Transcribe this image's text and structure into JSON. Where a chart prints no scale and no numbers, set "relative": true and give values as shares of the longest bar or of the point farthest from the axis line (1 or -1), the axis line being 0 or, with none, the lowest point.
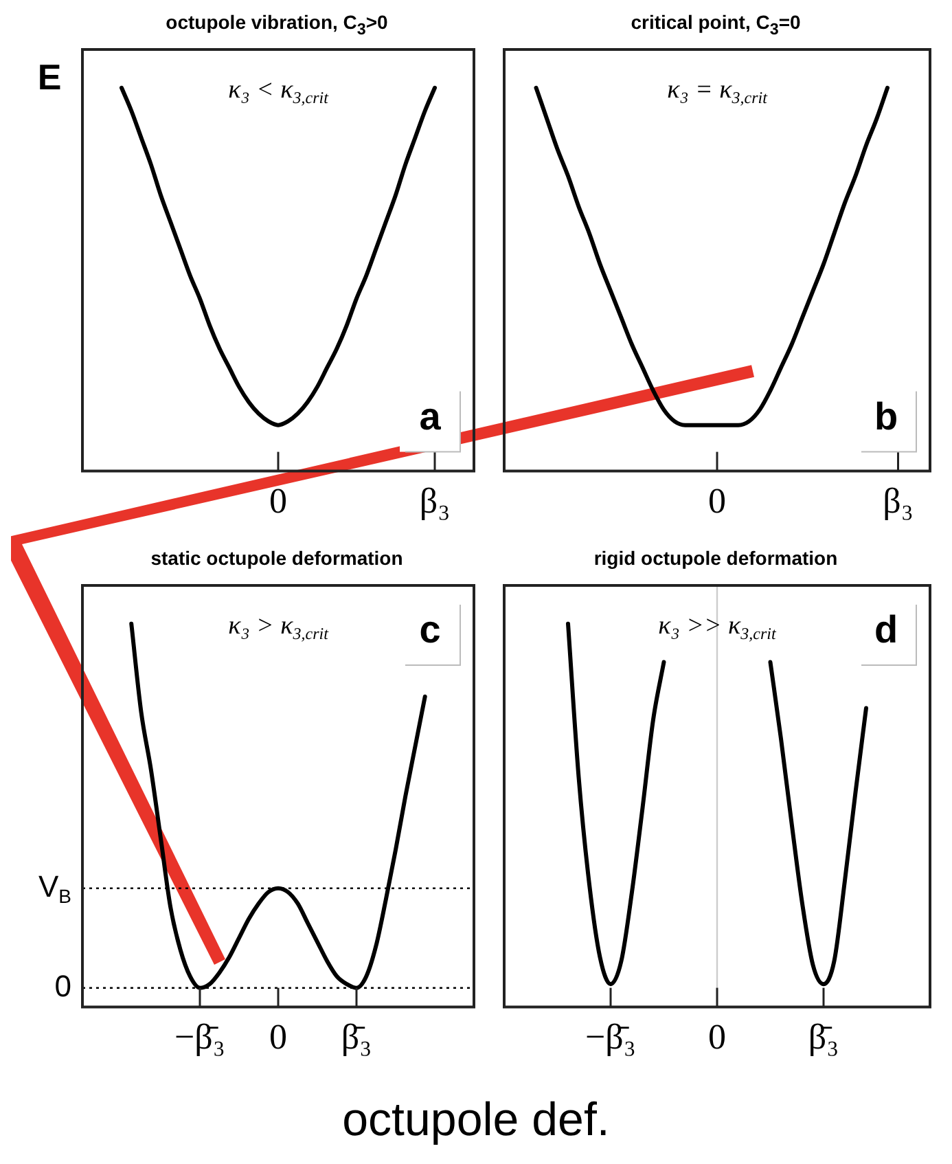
{
  "chart_data": [
    {
      "type": "line",
      "title": "octupole vibration, C$_{3}$>0",
      "ylabel": "E",
      "relative": true,
      "categories": [
        null,
        null,
        null,
        null,
        null,
        null,
        null,
        null,
        null,
        null,
        null,
        null,
        null,
        null,
        null,
        null,
        null,
        null,
        null,
        null,
        "0",
        null,
        null,
        null,
        null,
        null,
        null,
        null,
        null,
        null,
        null,
        null,
        null,
        null,
        null,
        null,
        "β₃",
        null,
        null,
        null,
        null
      ],
      "series": [
        {
          "color": "#000000",
          "values": [
            null,
            null,
            null,
            null,
            1,
            0.94,
            0.87,
            0.8,
            0.72,
            0.65,
            0.58,
            0.51,
            0.45,
            0.38,
            0.32,
            0.27,
            0.22,
            0.18,
            0.15,
            0.13,
            0.12,
            0.13,
            0.15,
            0.18,
            0.22,
            0.27,
            0.32,
            0.38,
            0.45,
            0.51,
            0.58,
            0.65,
            0.72,
            0.8,
            0.87,
            0.94,
            1,
            null,
            null,
            null,
            null
          ]
        }
      ],
      "annotations": [
        "κ₃ < κ$_{3,crit}$",
        "a"
      ]
    },
    {
      "type": "line",
      "title": "critical point, C$_{3}$=0",
      "relative": true,
      "categories": [
        null,
        null,
        null,
        null,
        null,
        null,
        null,
        null,
        null,
        null,
        null,
        null,
        null,
        null,
        null,
        null,
        null,
        null,
        null,
        null,
        "0",
        null,
        null,
        null,
        null,
        null,
        null,
        null,
        null,
        null,
        null,
        null,
        null,
        null,
        null,
        null,
        null,
        "β₃",
        null,
        null,
        null
      ],
      "series": [
        {
          "color": "#000000",
          "values": [
            null,
            null,
            null,
            1,
            0.92,
            0.84,
            0.77,
            0.69,
            0.62,
            0.54,
            0.47,
            0.4,
            0.33,
            0.27,
            0.21,
            0.16,
            0.13,
            0.12,
            0.12,
            0.12,
            0.12,
            0.12,
            0.12,
            0.13,
            0.16,
            0.21,
            0.27,
            0.33,
            0.4,
            0.47,
            0.54,
            0.62,
            0.7,
            0.77,
            0.85,
            0.92,
            1,
            null,
            null,
            null,
            null
          ]
        }
      ],
      "annotations": [
        "κ₃ = κ$_{3,crit}$",
        "b"
      ]
    },
    {
      "type": "line",
      "title": "static octupole deformation",
      "xlabel": "octupole def.",
      "relative": true,
      "categories": [
        null,
        null,
        null,
        null,
        null,
        null,
        null,
        null,
        null,
        null,
        null,
        null,
        "−β̄₃",
        null,
        null,
        null,
        null,
        null,
        null,
        null,
        "0",
        null,
        null,
        null,
        null,
        null,
        null,
        null,
        "β̄₃",
        null,
        null,
        null,
        null,
        null,
        null,
        null,
        null,
        null,
        null,
        null,
        null
      ],
      "series": [
        {
          "color": "#000000",
          "values": [
            null,
            null,
            null,
            null,
            null,
            1,
            0.77,
            0.62,
            0.44,
            0.26,
            0.15,
            0.08,
            0.05,
            0.06,
            0.09,
            0.13,
            0.18,
            0.23,
            0.27,
            0.3,
            0.31,
            0.3,
            0.27,
            0.22,
            0.17,
            0.12,
            0.08,
            0.06,
            0.05,
            0.08,
            0.16,
            0.28,
            0.41,
            0.55,
            0.68,
            0.81,
            null,
            null,
            null,
            null,
            null
          ]
        }
      ],
      "ref_lines": [
        {
          "axis": "y",
          "value": 0.31,
          "label": "V$_{B}$",
          "line_style": "dotted"
        },
        {
          "axis": "y",
          "value": 0.05,
          "label": "0",
          "line_style": "dotted"
        }
      ],
      "annotations": [
        "κ₃ > κ$_{3,crit}$",
        "c"
      ]
    },
    {
      "type": "line",
      "title": "rigid octupole deformation",
      "relative": true,
      "categories": [
        null,
        null,
        null,
        null,
        null,
        null,
        null,
        null,
        null,
        null,
        "−β̄₃",
        null,
        null,
        null,
        null,
        null,
        null,
        null,
        null,
        null,
        "0",
        null,
        null,
        null,
        null,
        null,
        null,
        null,
        null,
        null,
        "β̄₃",
        null,
        null,
        null,
        null,
        null,
        null,
        null,
        null,
        null,
        null
      ],
      "series": [
        {
          "color": "#000000",
          "values": [
            null,
            null,
            null,
            null,
            null,
            null,
            1,
            0.6,
            0.32,
            0.13,
            0.06,
            0.12,
            0.3,
            0.52,
            0.75,
            0.9,
            null,
            null,
            null,
            null,
            null,
            null,
            null,
            null,
            null,
            0.9,
            0.7,
            0.48,
            0.27,
            0.11,
            0.06,
            0.12,
            0.33,
            0.56,
            0.78,
            null,
            null,
            null,
            null,
            null,
            null
          ]
        }
      ],
      "ref_lines": [
        {
          "axis": "x",
          "value": "0",
          "color": "#cccccc"
        }
      ],
      "annotations": [
        "κ₃ >> κ$_{3,crit}$",
        "d"
      ]
    }
  ]
}
